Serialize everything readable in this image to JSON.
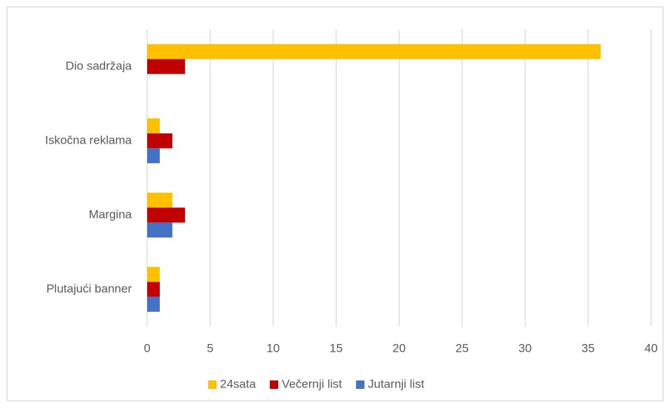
{
  "chart_data": {
    "type": "barh",
    "categories": [
      "Dio sadržaja",
      "Iskočna reklama",
      "Margina",
      "Plutajući banner"
    ],
    "series": [
      {
        "name": "24sata",
        "color": "#ffc000",
        "values": [
          36,
          1,
          2,
          1
        ]
      },
      {
        "name": "Večernji list",
        "color": "#c00000",
        "values": [
          3,
          2,
          3,
          1
        ]
      },
      {
        "name": "Jutarnji list",
        "color": "#4472c4",
        "values": [
          0,
          1,
          2,
          1
        ]
      }
    ],
    "xlim": [
      0,
      40
    ],
    "xticks": [
      0,
      5,
      10,
      15,
      20,
      25,
      30,
      35,
      40
    ],
    "grid": true,
    "legend": "bottom"
  }
}
